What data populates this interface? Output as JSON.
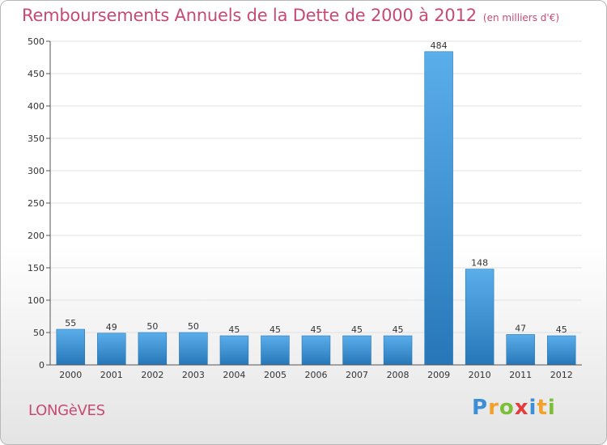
{
  "page": {
    "commune": "LONGèVES",
    "logo": {
      "letters": [
        {
          "char": "P",
          "color": "#3c8fd6"
        },
        {
          "char": "r",
          "color": "#f2a12a"
        },
        {
          "char": "o",
          "color": "#7cbf36"
        },
        {
          "char": "x",
          "color": "#e23d3d"
        },
        {
          "char": "i",
          "color": "#3c8fd6"
        },
        {
          "char": "t",
          "color": "#f2a12a"
        },
        {
          "char": "i",
          "color": "#7cbf36"
        }
      ]
    }
  },
  "colors": {
    "title": "#c64b72",
    "bar_light": "#5aaeea",
    "bar_dark": "#2777b8",
    "axis": "#555555",
    "grid": "#e0e0e0"
  },
  "chart_data": {
    "type": "bar",
    "title": "Remboursements Annuels de la Dette de 2000 à 2012",
    "subtitle": "(en milliers d'€)",
    "xlabel": "",
    "ylabel": "",
    "ylim": [
      0,
      500
    ],
    "yticks": [
      0,
      50,
      100,
      150,
      200,
      250,
      300,
      350,
      400,
      450,
      500
    ],
    "categories": [
      "2000",
      "2001",
      "2002",
      "2003",
      "2004",
      "2005",
      "2006",
      "2007",
      "2008",
      "2009",
      "2010",
      "2011",
      "2012"
    ],
    "values": [
      55,
      49,
      50,
      50,
      45,
      45,
      45,
      45,
      45,
      484,
      148,
      47,
      45
    ],
    "grid": true,
    "legend": "none"
  }
}
